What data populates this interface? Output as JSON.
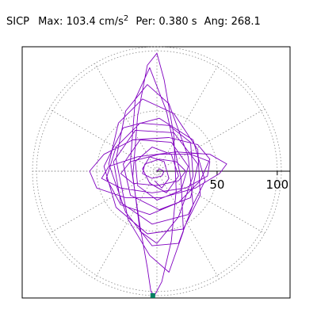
{
  "header": {
    "station": "SICP",
    "max_label": "Max:",
    "max_value": "103.4 cm/s",
    "max_exp": "2",
    "per_label": "Per:",
    "per_value": "0.380 s",
    "ang_label": "Ang:",
    "ang_value": "268.1"
  },
  "chart_data": {
    "type": "scatter",
    "title": "",
    "coordinate_system": "polar",
    "r_max": 103.4,
    "r_ticks": [
      50,
      100
    ],
    "r_tick_labels": [
      "50",
      "100"
    ],
    "grid": "dotted",
    "trace_color": "#8000c0",
    "marker_color": "#008060",
    "peak": {
      "amplitude": 103.4,
      "angle_deg": 268.1
    },
    "series": [
      {
        "type": "orbit-trace",
        "points": [
          [
            -2,
            -8
          ],
          [
            4,
            -14
          ],
          [
            10,
            -6
          ],
          [
            6,
            8
          ],
          [
            -6,
            12
          ],
          [
            -12,
            2
          ],
          [
            -6,
            -10
          ],
          [
            8,
            -18
          ],
          [
            18,
            -4
          ],
          [
            12,
            14
          ],
          [
            -4,
            20
          ],
          [
            -18,
            8
          ],
          [
            -16,
            -12
          ],
          [
            0,
            -24
          ],
          [
            20,
            -16
          ],
          [
            26,
            4
          ],
          [
            12,
            24
          ],
          [
            -14,
            26
          ],
          [
            -28,
            6
          ],
          [
            -22,
            -20
          ],
          [
            2,
            -32
          ],
          [
            28,
            -22
          ],
          [
            34,
            6
          ],
          [
            14,
            32
          ],
          [
            -18,
            34
          ],
          [
            -36,
            8
          ],
          [
            -30,
            -26
          ],
          [
            -4,
            -44
          ],
          [
            26,
            -36
          ],
          [
            40,
            -8
          ],
          [
            30,
            26
          ],
          [
            2,
            44
          ],
          [
            -28,
            36
          ],
          [
            -44,
            4
          ],
          [
            -34,
            -30
          ],
          [
            -8,
            -52
          ],
          [
            22,
            -48
          ],
          [
            36,
            -20
          ],
          [
            34,
            18
          ],
          [
            14,
            48
          ],
          [
            -12,
            60
          ],
          [
            -32,
            40
          ],
          [
            -40,
            6
          ],
          [
            -26,
            -34
          ],
          [
            -4,
            -62
          ],
          [
            18,
            -60
          ],
          [
            30,
            -28
          ],
          [
            26,
            12
          ],
          [
            10,
            56
          ],
          [
            -8,
            72
          ],
          [
            -26,
            50
          ],
          [
            -34,
            10
          ],
          [
            -24,
            -40
          ],
          [
            -6,
            -70
          ],
          [
            10,
            -84
          ],
          [
            22,
            -50
          ],
          [
            20,
            -6
          ],
          [
            8,
            50
          ],
          [
            -6,
            86
          ],
          [
            -18,
            60
          ],
          [
            -22,
            8
          ],
          [
            -14,
            -46
          ],
          [
            -8,
            -80
          ],
          [
            -5,
            -100
          ],
          [
            -2,
            -103.3
          ],
          [
            4,
            -92
          ],
          [
            12,
            -58
          ],
          [
            16,
            -16
          ],
          [
            14,
            30
          ],
          [
            6,
            76
          ],
          [
            0,
            98
          ],
          [
            -8,
            88
          ],
          [
            -16,
            46
          ],
          [
            -20,
            -4
          ],
          [
            -14,
            -50
          ],
          [
            0,
            -60
          ],
          [
            18,
            -38
          ],
          [
            30,
            -4
          ],
          [
            28,
            24
          ],
          [
            10,
            38
          ],
          [
            -14,
            40
          ],
          [
            -34,
            20
          ],
          [
            -42,
            -6
          ],
          [
            -30,
            -28
          ],
          [
            -6,
            -36
          ],
          [
            18,
            -26
          ],
          [
            36,
            -8
          ],
          [
            44,
            10
          ],
          [
            34,
            22
          ],
          [
            10,
            28
          ],
          [
            -20,
            26
          ],
          [
            -44,
            14
          ],
          [
            -56,
            0
          ],
          [
            -50,
            -14
          ],
          [
            -26,
            -22
          ],
          [
            4,
            -22
          ],
          [
            32,
            -14
          ],
          [
            52,
            -2
          ],
          [
            58,
            6
          ],
          [
            44,
            14
          ],
          [
            16,
            16
          ],
          [
            -16,
            12
          ],
          [
            -40,
            4
          ],
          [
            -46,
            -6
          ],
          [
            -30,
            -14
          ],
          [
            -4,
            -18
          ],
          [
            24,
            -14
          ],
          [
            42,
            -4
          ],
          [
            44,
            8
          ],
          [
            28,
            14
          ],
          [
            2,
            14
          ],
          [
            -22,
            8
          ],
          [
            -30,
            -2
          ],
          [
            -20,
            -10
          ],
          [
            0,
            -12
          ],
          [
            18,
            -8
          ],
          [
            24,
            0
          ],
          [
            16,
            8
          ],
          [
            2,
            10
          ],
          [
            -10,
            6
          ],
          [
            -12,
            -2
          ],
          [
            -4,
            -6
          ],
          [
            4,
            -4
          ],
          [
            6,
            0
          ],
          [
            2,
            2
          ],
          [
            0,
            0
          ]
        ]
      }
    ]
  }
}
